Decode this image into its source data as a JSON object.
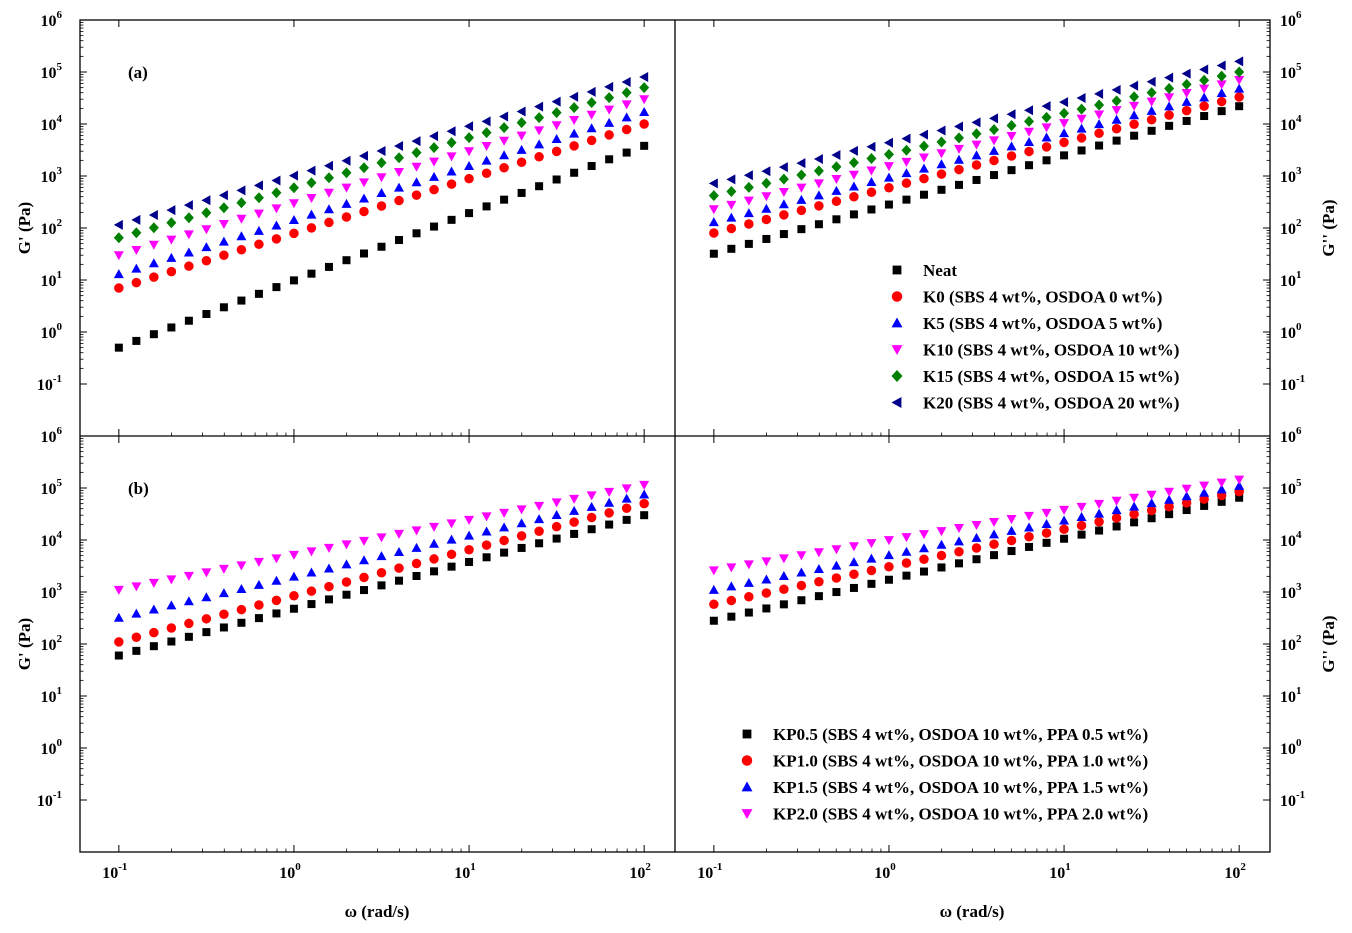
{
  "chart_data": {
    "type": "scatter",
    "x_scale": "log",
    "y_scale": "log",
    "xlim": [
      0.06,
      150
    ],
    "ylim": [
      0.01,
      1000000
    ],
    "x_ticks": [
      {
        "value": 0.1,
        "base": "10",
        "exp": "-1"
      },
      {
        "value": 1,
        "base": "10",
        "exp": "0"
      },
      {
        "value": 10,
        "base": "10",
        "exp": "1"
      },
      {
        "value": 100,
        "base": "10",
        "exp": "2"
      }
    ],
    "y_ticks": [
      {
        "value": 0.1,
        "base": "10",
        "exp": "-1"
      },
      {
        "value": 1,
        "base": "10",
        "exp": "0"
      },
      {
        "value": 10,
        "base": "10",
        "exp": "1"
      },
      {
        "value": 100,
        "base": "10",
        "exp": "2"
      },
      {
        "value": 1000,
        "base": "10",
        "exp": "3"
      },
      {
        "value": 10000,
        "base": "10",
        "exp": "4"
      },
      {
        "value": 100000,
        "base": "10",
        "exp": "5"
      },
      {
        "value": 1000000,
        "base": "10",
        "exp": "6"
      }
    ],
    "xlabel": "ω (rad/s)",
    "ylabel_left": "G' (Pa)",
    "ylabel_right": "G'' (Pa)",
    "point_count": 31,
    "panels": [
      {
        "label": "(a)",
        "legend_position": "right-subplot-lower-right",
        "series": [
          {
            "name": "Neat",
            "marker": "square",
            "color": "#000000",
            "g1_at_0_1": 0.5,
            "g1_at_100": 3800,
            "g2_at_0_1": 32,
            "g2_at_100": 22000
          },
          {
            "name": "K0 (SBS  4 wt%, OSDOA 0 wt%)",
            "marker": "circle",
            "color": "#ff0000",
            "g1_at_0_1": 7,
            "g1_at_100": 10000,
            "g2_at_0_1": 80,
            "g2_at_100": 33000
          },
          {
            "name": "K5 (SBS  4 wt%, OSDOA 5 wt%)",
            "marker": "triangle-up",
            "color": "#0000ff",
            "g1_at_0_1": 13,
            "g1_at_100": 17000,
            "g2_at_0_1": 130,
            "g2_at_100": 48000
          },
          {
            "name": "K10 (SBS  4 wt%, OSDOA 10 wt%)",
            "marker": "triangle-down",
            "color": "#ff00ff",
            "g1_at_0_1": 30,
            "g1_at_100": 30000,
            "g2_at_0_1": 230,
            "g2_at_100": 70000
          },
          {
            "name": "K15 (SBS  4 wt%, OSDOA 15 wt%)",
            "marker": "diamond",
            "color": "#008000",
            "g1_at_0_1": 65,
            "g1_at_100": 50000,
            "g2_at_0_1": 420,
            "g2_at_100": 100000
          },
          {
            "name": "K20 (SBS  4 wt%, OSDOA 20 wt%)",
            "marker": "triangle-left",
            "color": "#00008b",
            "g1_at_0_1": 115,
            "g1_at_100": 80000,
            "g2_at_0_1": 720,
            "g2_at_100": 160000
          }
        ]
      },
      {
        "label": "(b)",
        "legend_position": "right-subplot-lower-right",
        "series": [
          {
            "name": "KP0.5 (SBS  4 wt%, OSDOA 10 wt%, PPA 0.5 wt%)",
            "marker": "square",
            "color": "#000000",
            "g1_at_0_1": 60,
            "g1_at_100": 30000,
            "g2_at_0_1": 280,
            "g2_at_100": 65000
          },
          {
            "name": "KP1.0 (SBS  4 wt%, OSDOA 10 wt%, PPA 1.0 wt%)",
            "marker": "circle",
            "color": "#ff0000",
            "g1_at_0_1": 110,
            "g1_at_100": 50000,
            "g2_at_0_1": 580,
            "g2_at_100": 85000
          },
          {
            "name": "KP1.5 (SBS  4 wt%, OSDOA 10 wt%, PPA 1.5 wt%)",
            "marker": "triangle-up",
            "color": "#0000ff",
            "g1_at_0_1": 320,
            "g1_at_100": 75000,
            "g2_at_0_1": 1100,
            "g2_at_100": 110000
          },
          {
            "name": "KP2.0 (SBS  4 wt%, OSDOA 10 wt%, PPA 2.0 wt%)",
            "marker": "triangle-down",
            "color": "#ff00ff",
            "g1_at_0_1": 1100,
            "g1_at_100": 115000,
            "g2_at_0_1": 2600,
            "g2_at_100": 145000
          }
        ]
      }
    ]
  }
}
